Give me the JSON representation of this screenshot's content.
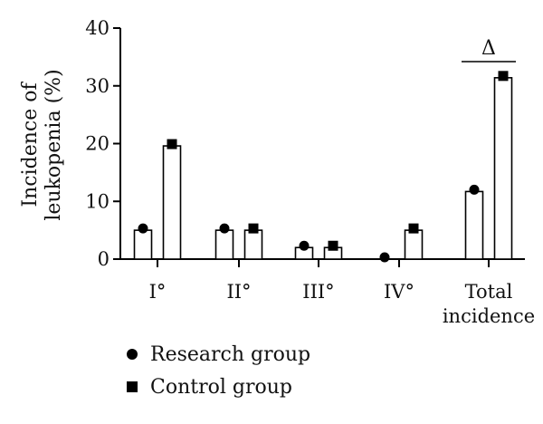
{
  "chart_data": {
    "type": "bar",
    "title": "",
    "ylabel_lines": [
      "Incidence of",
      "leukopenia (%)"
    ],
    "ylim": [
      0,
      40
    ],
    "yticks": [
      0,
      10,
      20,
      30,
      40
    ],
    "categories": [
      [
        "I°"
      ],
      [
        "II°"
      ],
      [
        "III°"
      ],
      [
        "IV°"
      ],
      [
        "Total",
        "incidence"
      ]
    ],
    "series": [
      {
        "name": "Research group",
        "marker": "circle",
        "values": [
          5,
          5,
          2,
          0,
          11.7
        ]
      },
      {
        "name": "Control group",
        "marker": "square",
        "values": [
          19.6,
          5,
          2,
          5,
          31.4
        ]
      }
    ],
    "annotation": {
      "text": "Δ",
      "category_index": 4
    },
    "legend": "bottom-left",
    "grid": false,
    "bar_fill": "#ffffff",
    "stroke_color": "#000000"
  }
}
